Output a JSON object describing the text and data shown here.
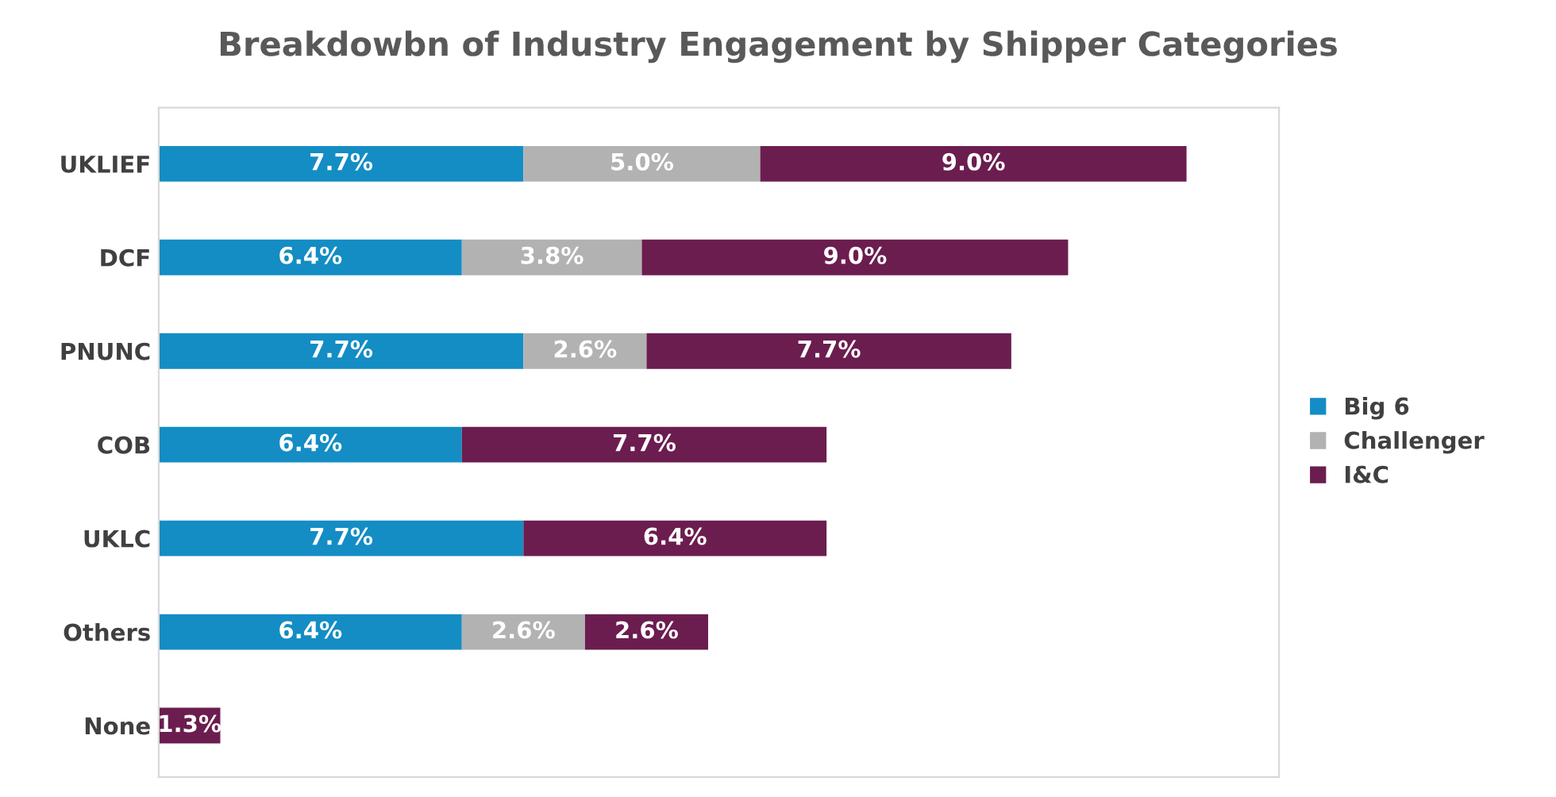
{
  "chart_data": {
    "type": "bar",
    "orientation": "horizontal",
    "stacked": true,
    "title": "Breakdowbn of Industry Engagement by Shipper Categories",
    "categories": [
      "UKLIEF",
      "DCF",
      "PNUNC",
      "COB",
      "UKLC",
      "Others",
      "None"
    ],
    "series": [
      {
        "name": "Big 6",
        "color": "#138dc4",
        "values": [
          7.7,
          6.4,
          7.7,
          6.4,
          7.7,
          6.4,
          null
        ],
        "value_labels": [
          "7.7%",
          "6.4%",
          "7.7%",
          "6.4%",
          "7.7%",
          "6.4%",
          null
        ]
      },
      {
        "name": "Challenger",
        "color": "#b2b2b2",
        "values": [
          5.0,
          3.8,
          2.6,
          null,
          null,
          2.6,
          null
        ],
        "value_labels": [
          "5.0%",
          "3.8%",
          "2.6%",
          null,
          null,
          "2.6%",
          null
        ]
      },
      {
        "name": "I&C",
        "color": "#6b1d4f",
        "values": [
          9.0,
          9.0,
          7.7,
          7.7,
          6.4,
          2.6,
          1.3
        ],
        "value_labels": [
          "9.0%",
          "9.0%",
          "7.7%",
          "7.7%",
          "6.4%",
          "2.6%",
          "1.3%"
        ]
      }
    ],
    "legend": "right",
    "grid": false
  }
}
